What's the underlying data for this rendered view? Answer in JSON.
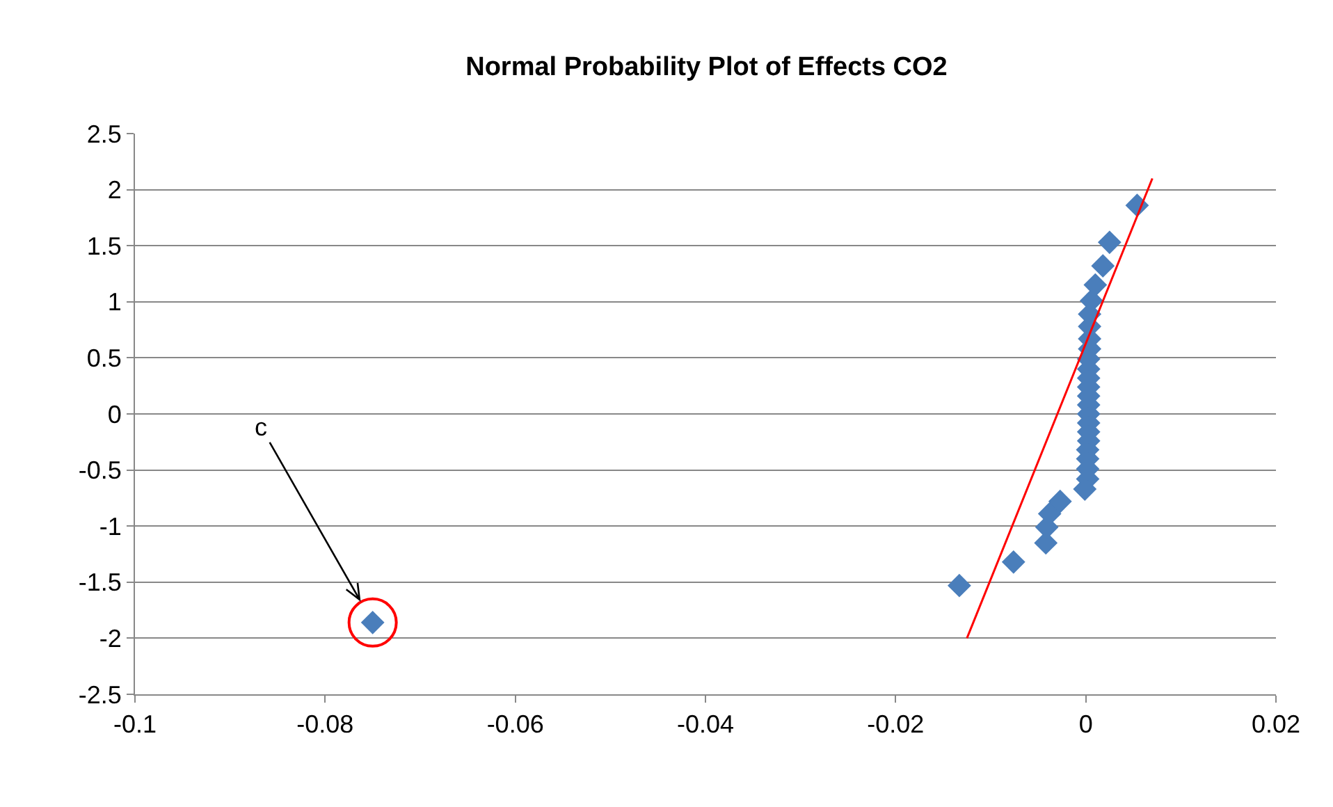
{
  "chart_data": {
    "type": "scatter",
    "title": "Normal Probability Plot of Effects CO2",
    "series": [
      {
        "color": "#4a7ebb",
        "marker": "diamond",
        "x": [
          -0.075,
          -0.0133,
          -0.0076,
          -0.0042,
          -0.0041,
          -0.0038,
          -0.0027,
          -0.0001,
          0.0002,
          0.0002,
          0.0002,
          0.0002,
          0.0003,
          0.0003,
          0.0003,
          0.0003,
          0.0003,
          0.0003,
          0.0003,
          0.0003,
          0.0003,
          0.0003,
          0.0004,
          0.0004,
          0.0004,
          0.0004,
          0.0006,
          0.001,
          0.0018,
          0.0025,
          0.0054
        ],
        "values": [
          -1.86,
          -1.53,
          -1.32,
          -1.15,
          -1.01,
          -0.89,
          -0.78,
          -0.67,
          -0.58,
          -0.49,
          -0.4,
          -0.32,
          -0.24,
          -0.16,
          -0.08,
          0,
          0.08,
          0.16,
          0.24,
          0.32,
          0.4,
          0.49,
          0.58,
          0.67,
          0.78,
          0.89,
          1.01,
          1.15,
          1.32,
          1.53,
          1.86
        ]
      },
      {
        "type": "line",
        "color": "#ff0000",
        "marker": "none",
        "line_style": "solid",
        "x": [
          -0.0125,
          0.007
        ],
        "values": [
          -2,
          2.1
        ]
      }
    ],
    "xlim": [
      -0.1,
      0.02
    ],
    "xticks": [
      -0.1,
      -0.08,
      -0.06,
      -0.04,
      -0.02,
      0,
      0.02
    ],
    "ylim": [
      -2.5,
      2.5
    ],
    "yticks": [
      -2.5,
      -2,
      -1.5,
      -1,
      -0.5,
      0,
      0.5,
      1,
      1.5,
      2,
      2.5
    ],
    "grid": "y",
    "legend": false,
    "annotations": [
      {
        "text": "c",
        "x": -0.075,
        "y": -1.86
      }
    ]
  }
}
